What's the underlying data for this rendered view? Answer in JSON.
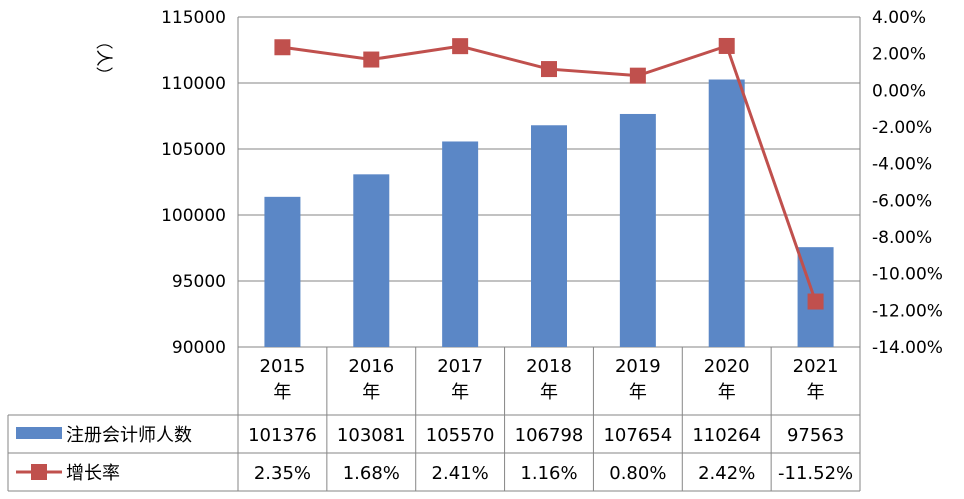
{
  "chart_data": {
    "type": "bar+line",
    "categories": [
      "2015\n年",
      "2016\n年",
      "2017\n年",
      "2018\n年",
      "2019\n年",
      "2020\n年",
      "2021\n年"
    ],
    "y_left_unit": "（人）",
    "y_left_ticks": [
      "115000",
      "110000",
      "105000",
      "100000",
      "95000",
      "90000"
    ],
    "y_left_range": [
      90000,
      115000
    ],
    "y_right_ticks": [
      "4.00%",
      "2.00%",
      "0.00%",
      "-2.00%",
      "-4.00%",
      "-6.00%",
      "-8.00%",
      "-10.00%",
      "-12.00%",
      "-14.00%"
    ],
    "y_right_range": [
      -14,
      4
    ],
    "series": [
      {
        "name": "注册会计师人数",
        "type": "bar",
        "axis": "left",
        "color": "#5b87c6",
        "values": [
          101376,
          103081,
          105570,
          106798,
          107654,
          110264,
          97563
        ],
        "table_labels": [
          "101376",
          "103081",
          "105570",
          "106798",
          "107654",
          "110264",
          "97563"
        ]
      },
      {
        "name": "增长率",
        "type": "line",
        "axis": "right",
        "color": "#c0504d",
        "values": [
          2.35,
          1.68,
          2.41,
          1.16,
          0.8,
          2.42,
          -11.52
        ],
        "table_labels": [
          "2.35%",
          "1.68%",
          "2.41%",
          "1.16%",
          "0.80%",
          "2.42%",
          "-11.52%"
        ]
      }
    ],
    "grid": true,
    "legend": "data-table"
  }
}
